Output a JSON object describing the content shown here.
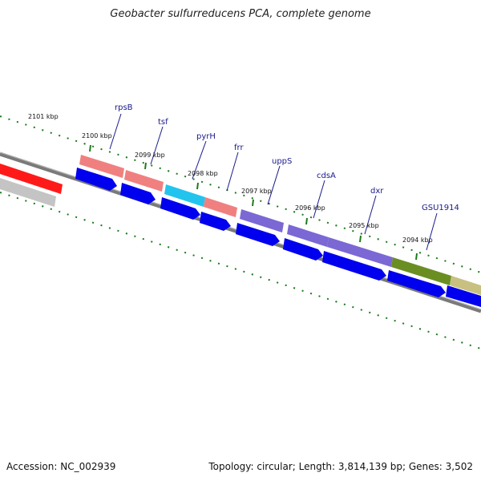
{
  "title": "Geobacter sulfurreducens PCA, complete genome",
  "accession": "Accession: NC_002939",
  "summary": "Topology: circular; Length: 3,814,139 bp; Genes: 3,502",
  "kbp_labels": [
    "2101 kbp",
    "2100 kbp",
    "2099 kbp",
    "2098 kbp",
    "2097 kbp",
    "2096 kbp",
    "2095 kbp",
    "2094 kbp"
  ],
  "gene_labels": [
    "rpsB",
    "tsf",
    "pyrH",
    "frr",
    "uppS",
    "cdsA",
    "dxr",
    "GSU1914"
  ],
  "colors": {
    "backbone": "#7a7a7a",
    "cds": "#0000ee",
    "rna_red": "#ff1a1a",
    "gray_feature": "#c4c4c4",
    "pink_feature": "#f08080",
    "cyan_feature": "#22c4ee",
    "purple_feature": "#7b68d4",
    "olive_feature": "#6b8e23",
    "khaki_feature": "#c8c080",
    "tick": "#1a7a1a",
    "label_line": "#1a1a8c"
  }
}
